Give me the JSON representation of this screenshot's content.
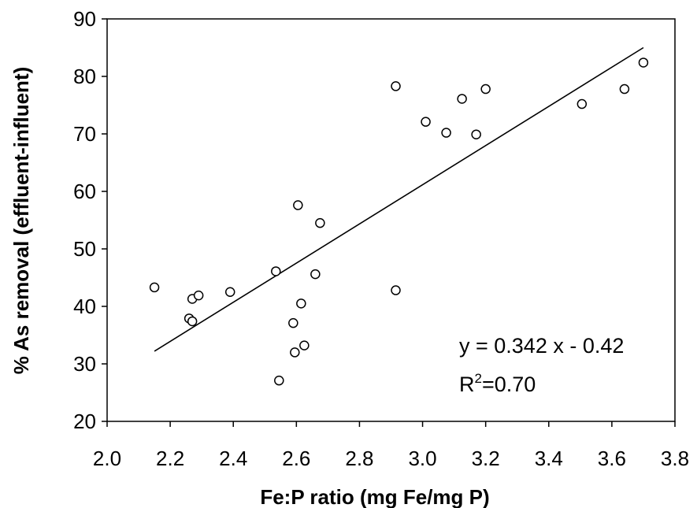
{
  "chart_data": {
    "type": "scatter",
    "xlabel": "Fe:P ratio (mg Fe/mg P)",
    "ylabel": "% As removal (effluent-influent)",
    "xlim": [
      2.0,
      3.8
    ],
    "ylim": [
      20,
      90
    ],
    "x_ticks": [
      "2.0",
      "2.2",
      "2.4",
      "2.6",
      "2.8",
      "3.0",
      "3.2",
      "3.4",
      "3.6",
      "3.8"
    ],
    "y_ticks": [
      "20",
      "30",
      "40",
      "50",
      "60",
      "70",
      "80",
      "90"
    ],
    "points": [
      {
        "x": 2.15,
        "y": 43.3
      },
      {
        "x": 2.26,
        "y": 37.9
      },
      {
        "x": 2.27,
        "y": 37.4
      },
      {
        "x": 2.27,
        "y": 41.3
      },
      {
        "x": 2.29,
        "y": 41.9
      },
      {
        "x": 2.39,
        "y": 42.5
      },
      {
        "x": 2.535,
        "y": 46.1
      },
      {
        "x": 2.545,
        "y": 27.1
      },
      {
        "x": 2.59,
        "y": 37.1
      },
      {
        "x": 2.595,
        "y": 32.0
      },
      {
        "x": 2.605,
        "y": 57.6
      },
      {
        "x": 2.615,
        "y": 40.5
      },
      {
        "x": 2.625,
        "y": 33.2
      },
      {
        "x": 2.66,
        "y": 45.6
      },
      {
        "x": 2.675,
        "y": 54.5
      },
      {
        "x": 2.915,
        "y": 78.3
      },
      {
        "x": 2.915,
        "y": 42.8
      },
      {
        "x": 3.01,
        "y": 72.1
      },
      {
        "x": 3.075,
        "y": 70.2
      },
      {
        "x": 3.125,
        "y": 76.1
      },
      {
        "x": 3.17,
        "y": 69.9
      },
      {
        "x": 3.2,
        "y": 77.8
      },
      {
        "x": 3.505,
        "y": 75.2
      },
      {
        "x": 3.64,
        "y": 77.8
      },
      {
        "x": 3.7,
        "y": 82.4
      }
    ],
    "trendline": {
      "x": [
        2.15,
        3.7
      ],
      "y": [
        32.2,
        85.0
      ]
    },
    "equation": "y = 0.342 x - 0.42",
    "r2_prefix": "R",
    "r2_sup": "2",
    "r2_value": "=0.70",
    "grid": false,
    "legend": "none"
  }
}
